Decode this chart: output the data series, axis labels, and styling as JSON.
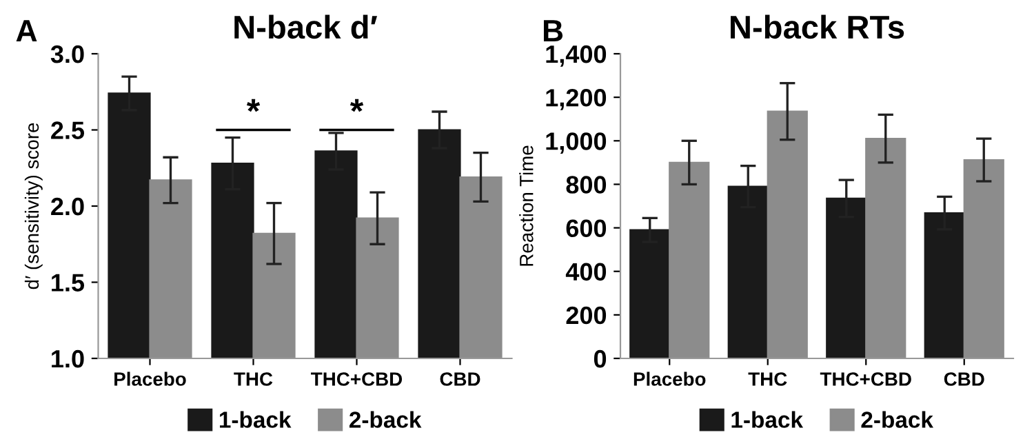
{
  "chart_data": [
    {
      "type": "bar",
      "title": "N-back d′",
      "ylabel": "d′ (sensitivity) score",
      "categories": [
        "Placebo",
        "THC",
        "THC+CBD",
        "CBD"
      ],
      "series": [
        {
          "name": "1-back",
          "color": "#1a1a1a",
          "values": [
            2.74,
            2.28,
            2.36,
            2.5
          ],
          "errors": [
            0.11,
            0.17,
            0.12,
            0.12
          ]
        },
        {
          "name": "2-back",
          "color": "#8c8c8c",
          "values": [
            2.17,
            1.82,
            1.92,
            2.19
          ],
          "errors": [
            0.15,
            0.2,
            0.17,
            0.16
          ]
        }
      ],
      "ylim": [
        1.0,
        3.0
      ],
      "yticks": [
        {
          "value": 1.0,
          "label": "1.0"
        },
        {
          "value": 1.5,
          "label": "1.5"
        },
        {
          "value": 2.0,
          "label": "2.0"
        },
        {
          "value": 2.5,
          "label": "2.5"
        },
        {
          "value": 3.0,
          "label": "3.0"
        }
      ],
      "grid": false,
      "legend": "bottom",
      "annotations": [
        "A",
        "*",
        "*"
      ]
    },
    {
      "type": "bar",
      "title": "N-back RTs",
      "ylabel": "Reaction Time",
      "categories": [
        "Placebo",
        "THC",
        "THC+CBD",
        "CBD"
      ],
      "series": [
        {
          "name": "1-back",
          "color": "#1a1a1a",
          "values": [
            590,
            790,
            735,
            668
          ],
          "errors": [
            55,
            95,
            85,
            75
          ]
        },
        {
          "name": "2-back",
          "color": "#8c8c8c",
          "values": [
            900,
            1135,
            1010,
            912
          ],
          "errors": [
            100,
            130,
            110,
            98
          ]
        }
      ],
      "ylim": [
        0,
        1400
      ],
      "yticks": [
        0,
        200,
        400,
        600,
        800,
        {
          "value": 1000,
          "label": "1,000"
        },
        {
          "value": 1200,
          "label": "1,200"
        },
        {
          "value": 1400,
          "label": "1,400"
        }
      ],
      "grid": false,
      "legend": "bottom",
      "annotations": [
        "B"
      ]
    }
  ]
}
